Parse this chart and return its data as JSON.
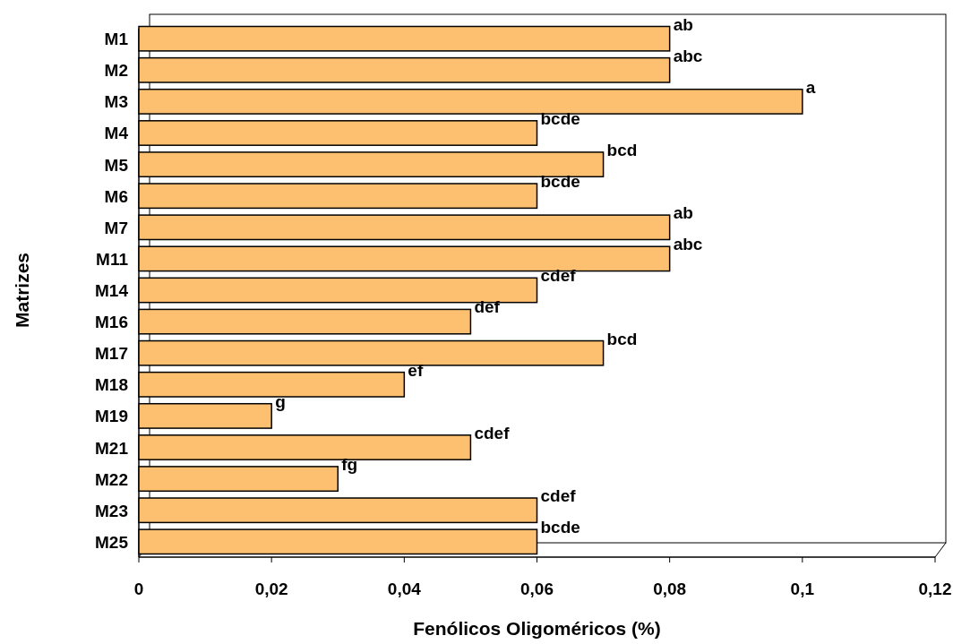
{
  "chart_data": {
    "type": "bar",
    "orientation": "horizontal",
    "xlabel": "Fenólicos Oligoméricos (%)",
    "ylabel": "Matrizes",
    "categories": [
      "M1",
      "M2",
      "M3",
      "M4",
      "M5",
      "M6",
      "M7",
      "M11",
      "M14",
      "M16",
      "M17",
      "M18",
      "M19",
      "M21",
      "M22",
      "M23",
      "M25"
    ],
    "values": [
      0.08,
      0.08,
      0.1,
      0.06,
      0.07,
      0.06,
      0.08,
      0.08,
      0.06,
      0.05,
      0.07,
      0.04,
      0.02,
      0.05,
      0.03,
      0.06,
      0.06
    ],
    "value_labels": [
      "ab",
      "abc",
      "a",
      "bcde",
      "bcd",
      "bcde",
      "ab",
      "abc",
      "cdef",
      "def",
      "bcd",
      "ef",
      "g",
      "cdef",
      "fg",
      "cdef",
      "bcde"
    ],
    "color": "#fcc070",
    "xlim": [
      0,
      0.12
    ],
    "xticks": [
      0,
      {
        "value": 0.02,
        "label": "0,02"
      },
      {
        "value": 0.04,
        "label": "0,04"
      },
      {
        "value": 0.06,
        "label": "0,06"
      },
      {
        "value": 0.08,
        "label": "0,08"
      },
      {
        "value": 0.1,
        "label": "0,1"
      },
      {
        "value": 0.12,
        "label": "0,12"
      }
    ]
  }
}
